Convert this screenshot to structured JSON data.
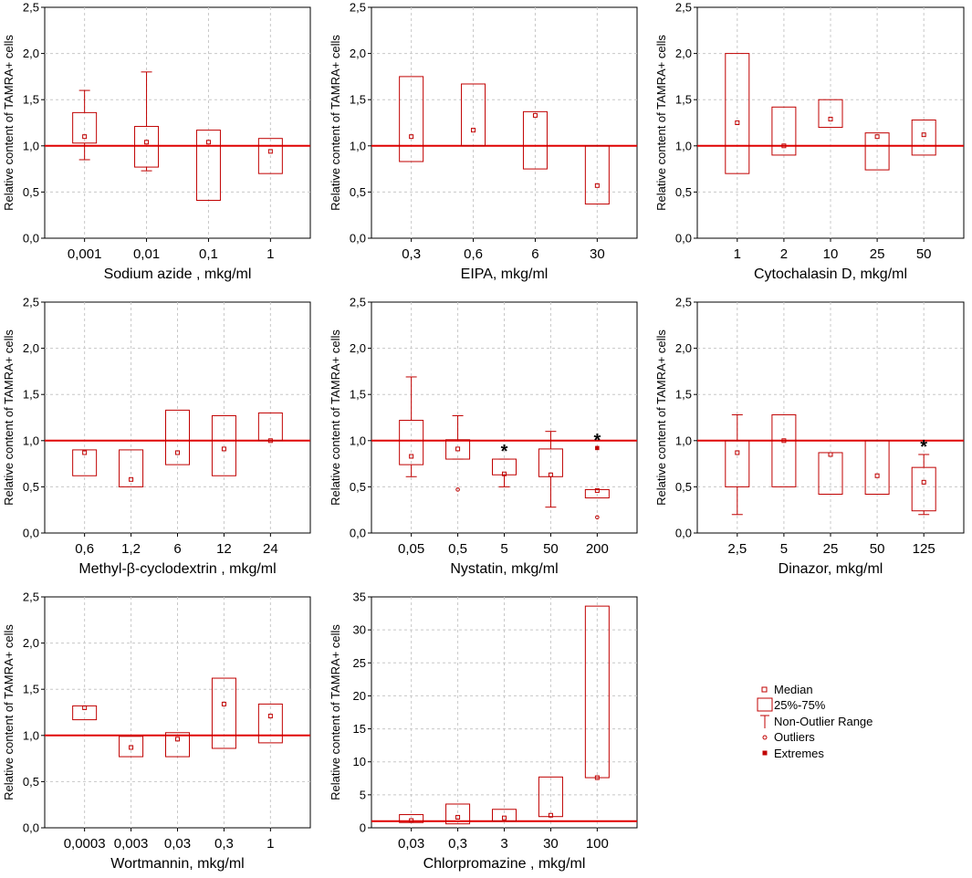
{
  "figure": {
    "ylabel": "Relative content of TAMRA+ cells",
    "line_color": "#e00000",
    "box_color": "#c00000"
  },
  "legend": {
    "median": "Median",
    "box": "25%-75%",
    "whisker": "Non-Outlier Range",
    "outliers": "Outliers",
    "extremes": "Extremes"
  },
  "chart_data": [
    {
      "type": "box",
      "xlabel": "Sodium azide , mkg/ml",
      "ylabel": "Relative content of TAMRA+ cells",
      "ylim": [
        0,
        2.5
      ],
      "yticks": [
        "0,0",
        "0,5",
        "1,0",
        "1,5",
        "2,0",
        "2,5"
      ],
      "reference_line": 1.0,
      "categories": [
        "0,001",
        "0,01",
        "0,1",
        "1"
      ],
      "boxes": [
        {
          "median": 1.1,
          "q1": 1.03,
          "q3": 1.36,
          "whisker_low": 0.85,
          "whisker_high": 1.6
        },
        {
          "median": 1.04,
          "q1": 0.77,
          "q3": 1.21,
          "whisker_low": 0.73,
          "whisker_high": 1.8
        },
        {
          "median": 1.04,
          "q1": 0.41,
          "q3": 1.17
        },
        {
          "median": 0.94,
          "q1": 0.7,
          "q3": 1.08
        }
      ]
    },
    {
      "type": "box",
      "xlabel": "EIPA, mkg/ml",
      "ylabel": "Relative content of TAMRA+ cells",
      "ylim": [
        0,
        2.5
      ],
      "yticks": [
        "0,0",
        "0,5",
        "1,0",
        "1,5",
        "2,0",
        "2,5"
      ],
      "reference_line": 1.0,
      "categories": [
        "0,3",
        "0,6",
        "6",
        "30"
      ],
      "boxes": [
        {
          "median": 1.1,
          "q1": 0.83,
          "q3": 1.75
        },
        {
          "median": 1.17,
          "q1": 1.0,
          "q3": 1.67
        },
        {
          "median": 1.33,
          "q1": 0.75,
          "q3": 1.37
        },
        {
          "median": 0.57,
          "q1": 0.37,
          "q3": 1.0
        }
      ]
    },
    {
      "type": "box",
      "xlabel": "Cytochalasin D, mkg/ml",
      "ylabel": "Relative content of TAMRA+ cells",
      "ylim": [
        0,
        2.5
      ],
      "yticks": [
        "0,0",
        "0,5",
        "1,0",
        "1,5",
        "2,0",
        "2,5"
      ],
      "reference_line": 1.0,
      "categories": [
        "1",
        "2",
        "10",
        "25",
        "50"
      ],
      "boxes": [
        {
          "median": 1.25,
          "q1": 0.7,
          "q3": 2.0
        },
        {
          "median": 1.0,
          "q1": 0.9,
          "q3": 1.42
        },
        {
          "median": 1.29,
          "q1": 1.2,
          "q3": 1.5
        },
        {
          "median": 1.1,
          "q1": 0.74,
          "q3": 1.14
        },
        {
          "median": 1.12,
          "q1": 0.9,
          "q3": 1.28
        }
      ]
    },
    {
      "type": "box",
      "xlabel": "Methyl-β-cyclodextrin , mkg/ml",
      "ylabel": "Relative content of TAMRA+ cells",
      "ylim": [
        0,
        2.5
      ],
      "yticks": [
        "0,0",
        "0,5",
        "1,0",
        "1,5",
        "2,0",
        "2,5"
      ],
      "reference_line": 1.0,
      "categories": [
        "0,6",
        "1,2",
        "6",
        "12",
        "24"
      ],
      "boxes": [
        {
          "median": 0.87,
          "q1": 0.62,
          "q3": 0.9
        },
        {
          "median": 0.58,
          "q1": 0.5,
          "q3": 0.9
        },
        {
          "median": 0.87,
          "q1": 0.74,
          "q3": 1.33
        },
        {
          "median": 0.91,
          "q1": 0.62,
          "q3": 1.27
        },
        {
          "median": 1.0,
          "q1": 1.0,
          "q3": 1.3
        }
      ]
    },
    {
      "type": "box",
      "xlabel": "Nystatin, mkg/ml",
      "ylabel": "Relative content of TAMRA+ cells",
      "ylim": [
        0,
        2.5
      ],
      "yticks": [
        "0,0",
        "0,5",
        "1,0",
        "1,5",
        "2,0",
        "2,5"
      ],
      "reference_line": 1.0,
      "categories": [
        "0,05",
        "0,5",
        "5",
        "50",
        "200"
      ],
      "significance": [
        "",
        "",
        "*",
        "",
        "*"
      ],
      "boxes": [
        {
          "median": 0.83,
          "q1": 0.74,
          "q3": 1.22,
          "whisker_low": 0.61,
          "whisker_high": 1.69
        },
        {
          "median": 0.91,
          "q1": 0.8,
          "q3": 1.01,
          "whisker_low": 0.8,
          "whisker_high": 1.27,
          "outliers": [
            0.47
          ]
        },
        {
          "median": 0.64,
          "q1": 0.63,
          "q3": 0.8,
          "whisker_low": 0.5,
          "whisker_high": 0.8
        },
        {
          "median": 0.63,
          "q1": 0.61,
          "q3": 0.91,
          "whisker_low": 0.28,
          "whisker_high": 1.1
        },
        {
          "median": 0.46,
          "q1": 0.38,
          "q3": 0.47,
          "outliers": [
            0.17
          ],
          "extremes": [
            0.92
          ]
        }
      ]
    },
    {
      "type": "box",
      "xlabel": "Dinazor, mkg/ml",
      "ylabel": "Relative content of TAMRA+ cells",
      "ylim": [
        0,
        2.5
      ],
      "yticks": [
        "0,0",
        "0,5",
        "1,0",
        "1,5",
        "2,0",
        "2,5"
      ],
      "reference_line": 1.0,
      "categories": [
        "2,5",
        "5",
        "25",
        "50",
        "125"
      ],
      "significance": [
        "",
        "",
        "",
        "",
        "*"
      ],
      "boxes": [
        {
          "median": 0.87,
          "q1": 0.5,
          "q3": 1.0,
          "whisker_low": 0.2,
          "whisker_high": 1.28
        },
        {
          "median": 1.0,
          "q1": 0.5,
          "q3": 1.28
        },
        {
          "median": 0.85,
          "q1": 0.42,
          "q3": 0.87
        },
        {
          "median": 0.62,
          "q1": 0.42,
          "q3": 1.0
        },
        {
          "median": 0.55,
          "q1": 0.24,
          "q3": 0.71,
          "whisker_low": 0.2,
          "whisker_high": 0.85
        }
      ]
    },
    {
      "type": "box",
      "xlabel": "Wortmannin, mkg/ml",
      "ylabel": "Relative content of TAMRA+ cells",
      "ylim": [
        0,
        2.5
      ],
      "yticks": [
        "0,0",
        "0,5",
        "1,0",
        "1,5",
        "2,0",
        "2,5"
      ],
      "reference_line": 1.0,
      "categories": [
        "0,0003",
        "0,003",
        "0,03",
        "0,3",
        "1"
      ],
      "boxes": [
        {
          "median": 1.3,
          "q1": 1.17,
          "q3": 1.32
        },
        {
          "median": 0.87,
          "q1": 0.77,
          "q3": 0.99
        },
        {
          "median": 0.96,
          "q1": 0.77,
          "q3": 1.03
        },
        {
          "median": 1.34,
          "q1": 0.86,
          "q3": 1.62
        },
        {
          "median": 1.21,
          "q1": 0.92,
          "q3": 1.34
        }
      ]
    },
    {
      "type": "box",
      "xlabel": "Chlorpromazine , mkg/ml",
      "ylabel": "Relative content of TAMRA+ cells",
      "ylim": [
        0,
        35
      ],
      "yticks": [
        "0",
        "5",
        "10",
        "15",
        "20",
        "25",
        "30",
        "35"
      ],
      "reference_line": 1.0,
      "categories": [
        "0,03",
        "0,3",
        "3",
        "30",
        "100"
      ],
      "boxes": [
        {
          "median": 1.1,
          "q1": 0.8,
          "q3": 2.0
        },
        {
          "median": 1.6,
          "q1": 0.6,
          "q3": 3.6
        },
        {
          "median": 1.5,
          "q1": 1.0,
          "q3": 2.8
        },
        {
          "median": 1.9,
          "q1": 1.7,
          "q3": 7.7
        },
        {
          "median": 7.6,
          "q1": 7.6,
          "q3": 33.6
        }
      ]
    }
  ]
}
